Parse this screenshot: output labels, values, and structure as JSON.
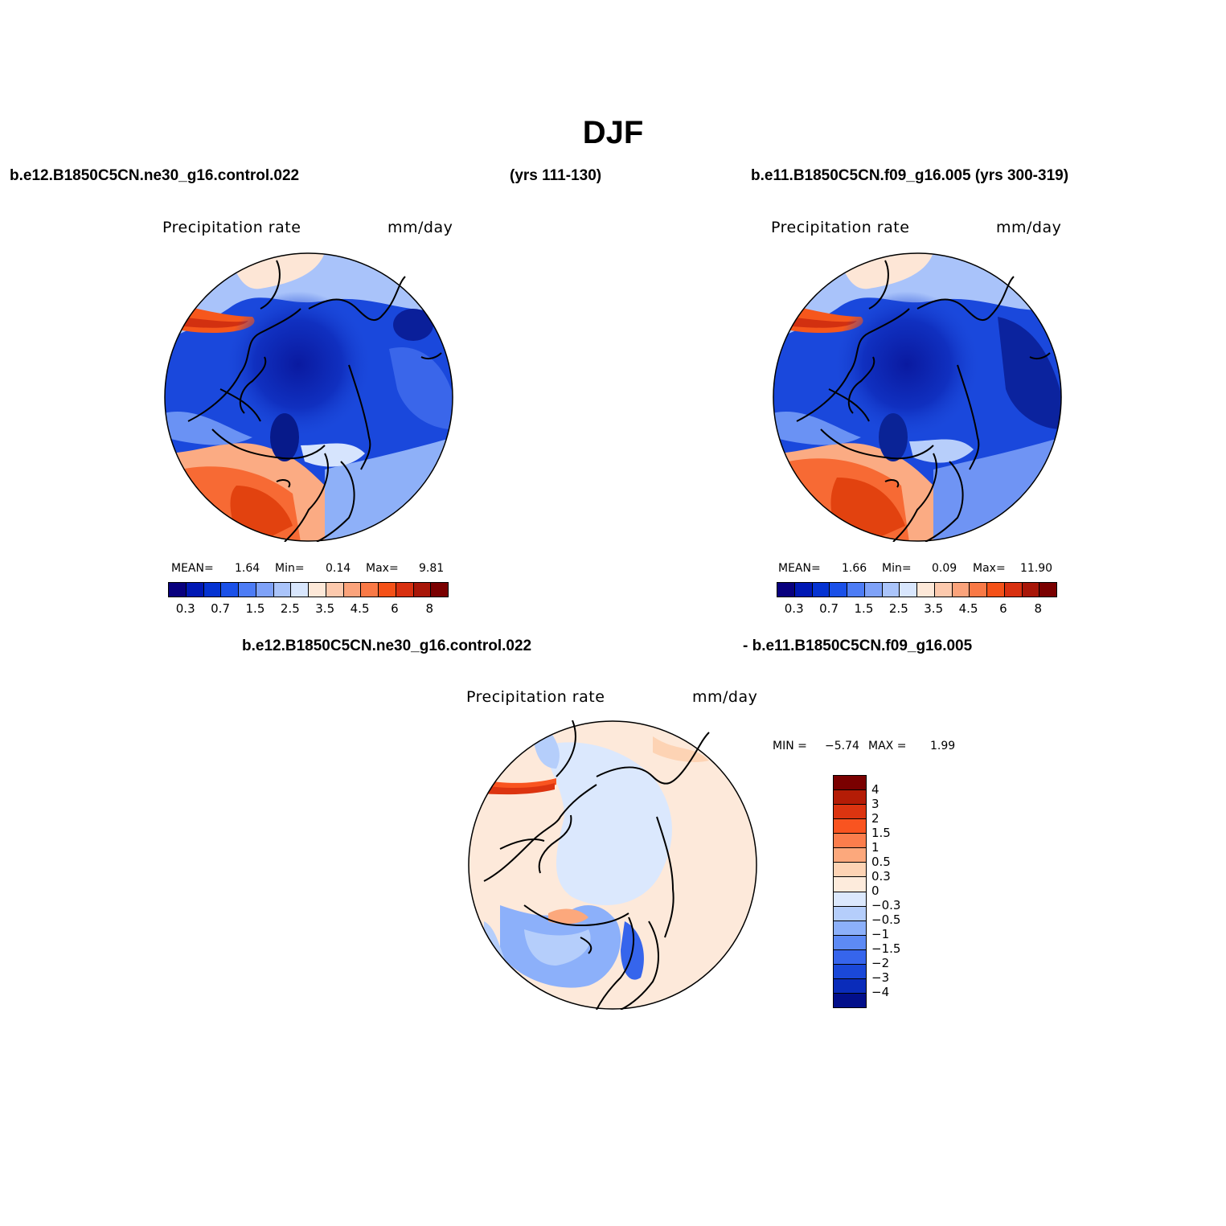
{
  "title": "DJF",
  "case_labels": {
    "panel1_case": "b.e12.B1850C5CN.ne30_g16.control.022",
    "panel1_years": "(yrs 111-130)",
    "panel2_case": "b.e11.B1850C5CN.f09_g16.005 (yrs 300-319)",
    "diff_case_a": "b.e12.B1850C5CN.ne30_g16.control.022",
    "diff_case_b": "- b.e11.B1850C5CN.f09_g16.005"
  },
  "panels": [
    {
      "variable": "Precipitation rate",
      "units": "mm/day",
      "mean_label": "MEAN=",
      "mean_value": "1.64",
      "min_label": "Min=",
      "min_value": "0.14",
      "max_label": "Max=",
      "max_value": "9.81"
    },
    {
      "variable": "Precipitation rate",
      "units": "mm/day",
      "mean_label": "MEAN=",
      "mean_value": "1.66",
      "min_label": "Min=",
      "min_value": "0.09",
      "max_label": "Max=",
      "max_value": "11.90"
    }
  ],
  "diff_panel": {
    "variable": "Precipitation rate",
    "units": "mm/day",
    "min_label": "MIN =",
    "min_value": "−5.74",
    "max_label": "MAX =",
    "max_value": "1.99"
  },
  "colorbar_main": {
    "colors": [
      "#08007e",
      "#0018b4",
      "#0533d2",
      "#1a50e8",
      "#4d7cf5",
      "#7fa2f8",
      "#aac4fa",
      "#d8e6fd",
      "#fde8d8",
      "#fcc9ad",
      "#fba37b",
      "#f97946",
      "#f45118",
      "#d83010",
      "#a81608",
      "#7a0000"
    ],
    "tick_labels": [
      "0.3",
      "0.7",
      "1.5",
      "2.5",
      "3.5",
      "4.5",
      "6",
      "8"
    ]
  },
  "colorbar_diff": {
    "colors": [
      "#7a0000",
      "#b41c06",
      "#dc3410",
      "#f95420",
      "#fb7d4c",
      "#fca87c",
      "#fdd3b4",
      "#fdebdc",
      "#dbe8fd",
      "#b5cefb",
      "#8cb0fa",
      "#5d8af5",
      "#3665ec",
      "#1a48d8",
      "#0a2cba",
      "#020f8a"
    ],
    "tick_labels": [
      "4",
      "3",
      "2",
      "1.5",
      "1",
      "0.5",
      "0.3",
      "0",
      "−0.3",
      "−0.5",
      "−1",
      "−1.5",
      "−2",
      "−3",
      "−4"
    ]
  }
}
